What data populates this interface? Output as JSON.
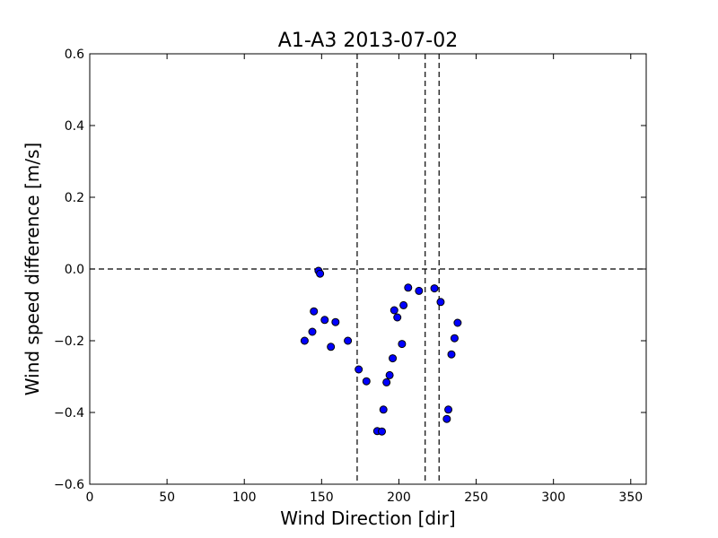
{
  "chart_data": {
    "type": "scatter",
    "title": "A1-A3 2013-07-02",
    "xlabel": "Wind Direction [dir]",
    "ylabel": "Wind speed difference [m/s]",
    "xlim": [
      0,
      360
    ],
    "ylim": [
      -0.6,
      0.6
    ],
    "xticks": [
      0,
      50,
      100,
      150,
      200,
      250,
      300,
      350
    ],
    "yticks": [
      -0.6,
      -0.4,
      -0.2,
      0.0,
      0.2,
      0.4,
      0.6
    ],
    "xtick_labels": [
      "0",
      "50",
      "100",
      "150",
      "200",
      "250",
      "300",
      "350"
    ],
    "ytick_labels": [
      "−0.6",
      "−0.4",
      "−0.2",
      "0.0",
      "0.2",
      "0.4",
      "0.6"
    ],
    "grid": false,
    "marker_color": "#0000ff",
    "vlines": [
      173,
      217,
      226
    ],
    "hlines": [
      0.0
    ],
    "points": [
      {
        "x": 139,
        "y": -0.2
      },
      {
        "x": 144,
        "y": -0.175
      },
      {
        "x": 145,
        "y": -0.118
      },
      {
        "x": 148,
        "y": -0.005
      },
      {
        "x": 149,
        "y": -0.013
      },
      {
        "x": 152,
        "y": -0.142
      },
      {
        "x": 156,
        "y": -0.217
      },
      {
        "x": 159,
        "y": -0.148
      },
      {
        "x": 167,
        "y": -0.2
      },
      {
        "x": 174,
        "y": -0.28
      },
      {
        "x": 179,
        "y": -0.313
      },
      {
        "x": 186,
        "y": -0.452
      },
      {
        "x": 189,
        "y": -0.453
      },
      {
        "x": 190,
        "y": -0.392
      },
      {
        "x": 192,
        "y": -0.316
      },
      {
        "x": 194,
        "y": -0.296
      },
      {
        "x": 196,
        "y": -0.249
      },
      {
        "x": 197,
        "y": -0.115
      },
      {
        "x": 199,
        "y": -0.135
      },
      {
        "x": 202,
        "y": -0.209
      },
      {
        "x": 203,
        "y": -0.101
      },
      {
        "x": 206,
        "y": -0.052
      },
      {
        "x": 213,
        "y": -0.061
      },
      {
        "x": 223,
        "y": -0.054
      },
      {
        "x": 227,
        "y": -0.092
      },
      {
        "x": 231,
        "y": -0.418
      },
      {
        "x": 232,
        "y": -0.392
      },
      {
        "x": 234,
        "y": -0.238
      },
      {
        "x": 236,
        "y": -0.193
      },
      {
        "x": 238,
        "y": -0.15
      }
    ]
  }
}
